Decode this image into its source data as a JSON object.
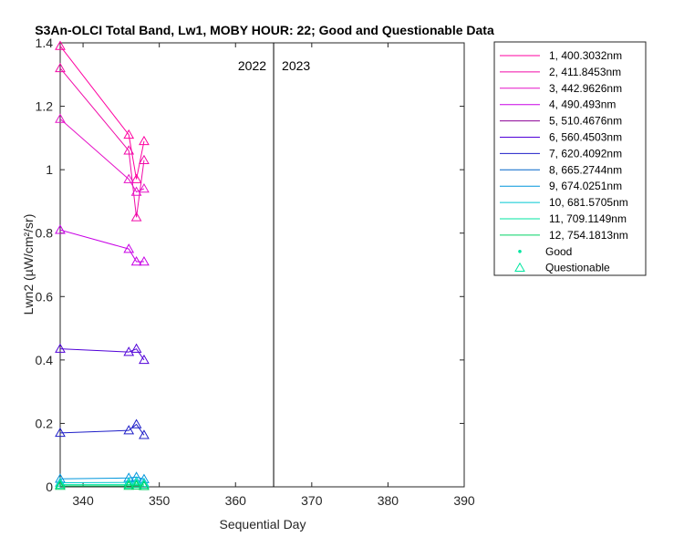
{
  "chart_data": {
    "type": "line",
    "title": "S3An-OLCI Total Band, Lw1, MOBY HOUR: 22;  Good and Questionable Data",
    "xlabel": "Sequential Day",
    "ylabel": "Lwn2 (µW/cm²/sr)",
    "xlim": [
      337,
      390
    ],
    "ylim": [
      0,
      1.4
    ],
    "xticks": [
      340,
      350,
      360,
      370,
      380,
      390
    ],
    "yticks": [
      0,
      0.2,
      0.4,
      0.6,
      0.8,
      1,
      1.2,
      1.4
    ],
    "grid": false,
    "legend_position": "outside-top-right",
    "x": [
      337,
      346,
      347,
      348
    ],
    "series": [
      {
        "name": "1, 400.3032nm",
        "color": "#ff00a0",
        "values": [
          1.39,
          1.11,
          0.97,
          1.09
        ]
      },
      {
        "name": "2, 411.8453nm",
        "color": "#f00aa8",
        "values": [
          1.32,
          1.06,
          0.85,
          1.03
        ]
      },
      {
        "name": "3, 442.9626nm",
        "color": "#e614c8",
        "values": [
          1.16,
          0.97,
          0.93,
          0.94
        ]
      },
      {
        "name": "4,  490.493nm",
        "color": "#c800e6",
        "values": [
          0.81,
          0.75,
          0.71,
          0.71
        ]
      },
      {
        "name": "5, 510.4676nm",
        "color": "#8c0096",
        "values": [
          null,
          null,
          null,
          null
        ]
      },
      {
        "name": "6, 560.4503nm",
        "color": "#5000d8",
        "values": [
          0.435,
          0.425,
          0.435,
          0.4
        ]
      },
      {
        "name": "7, 620.4092nm",
        "color": "#1e1ec8",
        "values": [
          0.17,
          0.178,
          0.197,
          0.163
        ]
      },
      {
        "name": "8, 665.2744nm",
        "color": "#0064c8",
        "values": [
          null,
          null,
          null,
          null
        ]
      },
      {
        "name": "9, 674.0251nm",
        "color": "#0096dc",
        "values": [
          0.025,
          0.028,
          0.031,
          0.024
        ]
      },
      {
        "name": "10, 681.5705nm",
        "color": "#00c8d2",
        "values": [
          0.013,
          0.014,
          0.016,
          0.012
        ]
      },
      {
        "name": "11, 709.1149nm",
        "color": "#00e6a0",
        "values": [
          0.007,
          0.007,
          0.009,
          0.006
        ]
      },
      {
        "name": "12, 754.1813nm",
        "color": "#00d264",
        "values": [
          0.003,
          0.003,
          0.004,
          0.002
        ]
      }
    ],
    "marker_legend": {
      "good_label": "Good",
      "questionable_label": "Questionable"
    },
    "year_divider": {
      "x": 365,
      "left_label": "2022",
      "right_label": "2023"
    }
  }
}
